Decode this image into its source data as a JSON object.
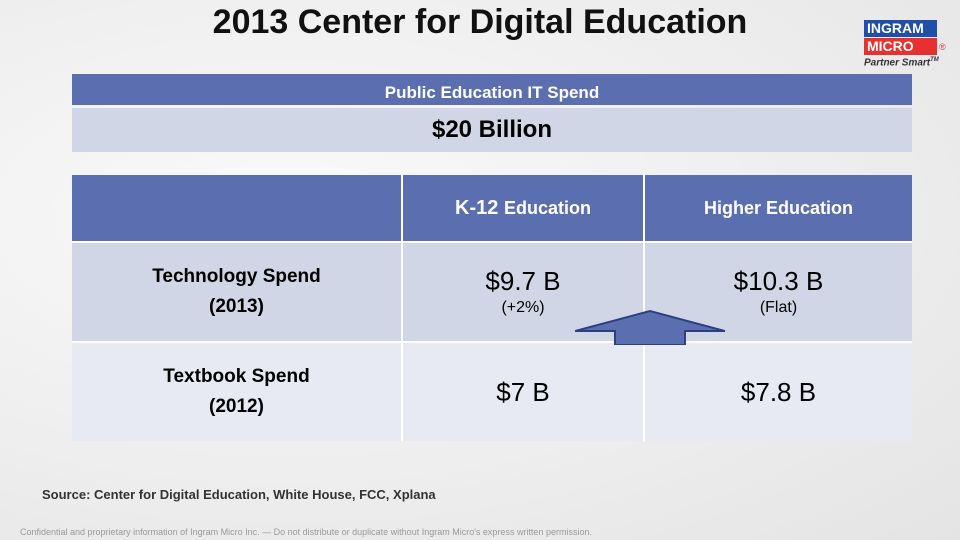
{
  "title": "2013 Center for Digital Education",
  "logo": {
    "line1": "INGRAM",
    "line2": "MICRO",
    "reg": "®",
    "tagline": "Partner Smart",
    "tm": "TM"
  },
  "spend": {
    "header": "Public Education IT Spend",
    "value": "$20 Billion"
  },
  "table": {
    "columns": {
      "k12_a": "K-12",
      "k12_b": "Education",
      "higher": "Higher Education"
    },
    "rows": [
      {
        "label_line1": "Technology Spend",
        "label_line2": "(2013)",
        "k12": "$9.7 B",
        "k12_note": "(+2%)",
        "higher": "$10.3 B",
        "higher_note": "(Flat)"
      },
      {
        "label_line1": "Textbook Spend",
        "label_line2": "(2012)",
        "k12": "$7 B",
        "higher": "$7.8 B"
      }
    ]
  },
  "arrow_icon": "up-arrow-icon",
  "colors": {
    "header_blue": "#5b6fb0",
    "row_light": "#d0d6e6",
    "row_lighter": "#e7eaf2"
  },
  "source": "Source: Center for Digital Education, White House, FCC, Xplana",
  "confidential": "Confidential and proprietary information of Ingram Micro Inc. — Do not distribute or duplicate without Ingram Micro's express written permission."
}
